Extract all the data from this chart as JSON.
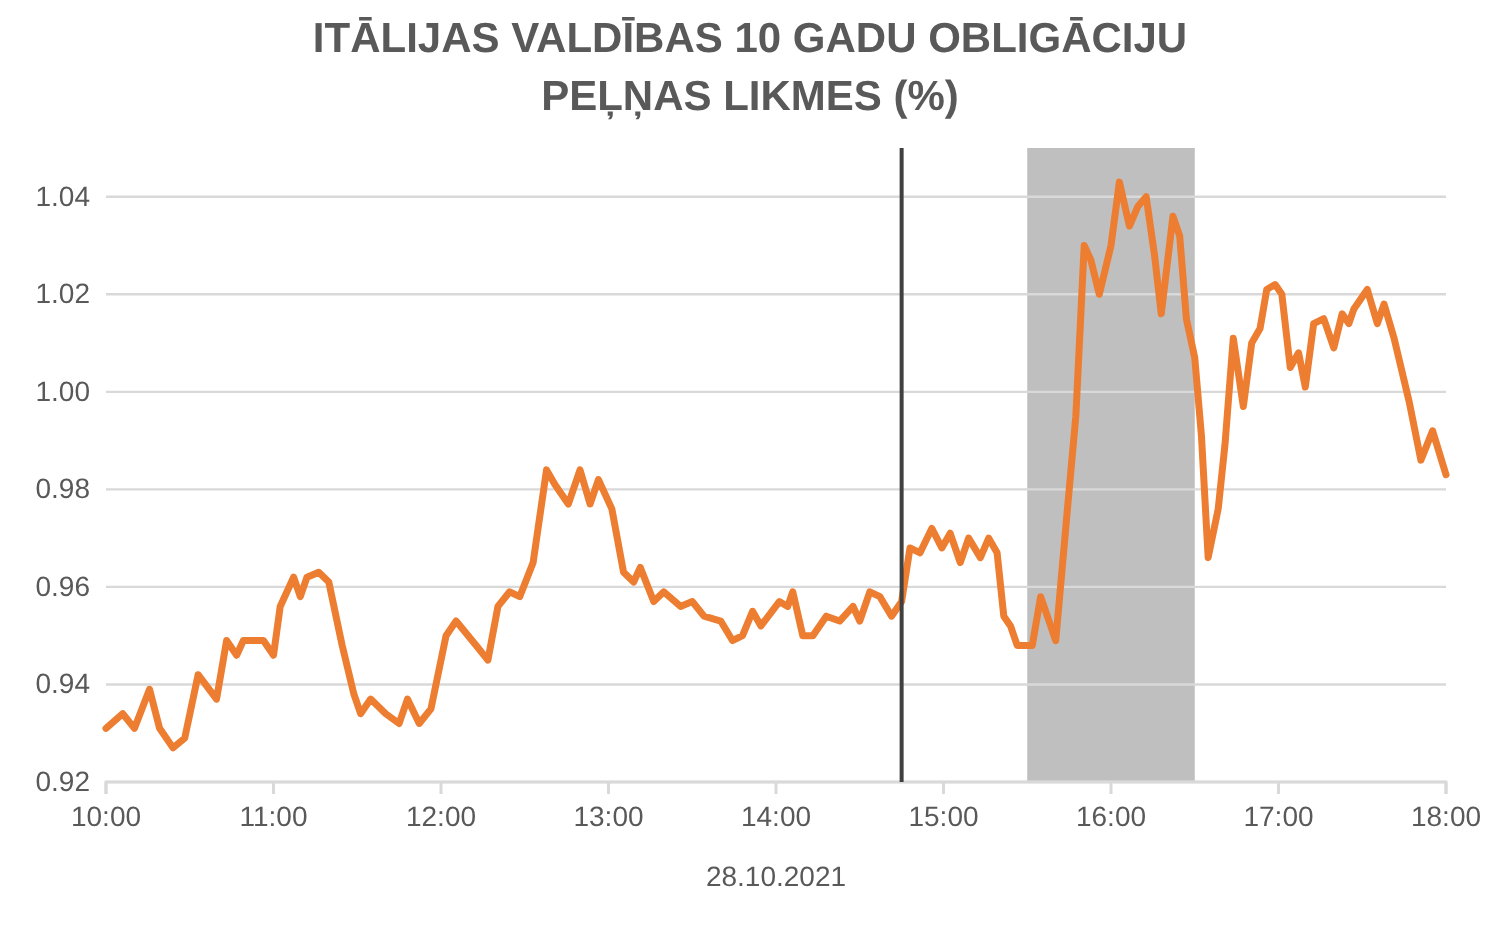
{
  "chart_data": {
    "type": "line",
    "title": "ITĀLIJAS VALDĪBAS 10 GADU OBLIGĀCIJU PEĻŅAS LIKMES (%)",
    "xlabel": "28.10.2021",
    "x": [
      10.0,
      10.1,
      10.17,
      10.26,
      10.32,
      10.4,
      10.47,
      10.55,
      10.66,
      10.72,
      10.78,
      10.82,
      10.94,
      11.0,
      11.04,
      11.12,
      11.16,
      11.2,
      11.27,
      11.33,
      11.41,
      11.48,
      11.52,
      11.58,
      11.67,
      11.75,
      11.8,
      11.87,
      11.94,
      12.03,
      12.09,
      12.21,
      12.28,
      12.34,
      12.41,
      12.47,
      12.55,
      12.63,
      12.68,
      12.76,
      12.83,
      12.89,
      12.94,
      13.02,
      13.09,
      13.15,
      13.19,
      13.27,
      13.33,
      13.43,
      13.5,
      13.57,
      13.67,
      13.74,
      13.8,
      13.86,
      13.91,
      14.02,
      14.07,
      14.1,
      14.16,
      14.22,
      14.3,
      14.38,
      14.46,
      14.5,
      14.56,
      14.62,
      14.69,
      14.75,
      14.8,
      14.86,
      14.93,
      14.99,
      15.04,
      15.1,
      15.15,
      15.22,
      15.27,
      15.32,
      15.36,
      15.4,
      15.44,
      15.53,
      15.58,
      15.67,
      15.74,
      15.79,
      15.84,
      15.88,
      15.93,
      16.0,
      16.05,
      16.11,
      16.16,
      16.21,
      16.26,
      16.3,
      16.37,
      16.41,
      16.45,
      16.5,
      16.54,
      16.58,
      16.64,
      16.68,
      16.73,
      16.79,
      16.84,
      16.89,
      16.93,
      16.98,
      17.02,
      17.07,
      17.12,
      17.16,
      17.21,
      17.27,
      17.33,
      17.38,
      17.42,
      17.45,
      17.53,
      17.59,
      17.63,
      17.69,
      17.78,
      17.85,
      17.92,
      18.0
    ],
    "series": [
      {
        "color": "#ed7d31",
        "values": [
          0.931,
          0.934,
          0.931,
          0.939,
          0.931,
          0.927,
          0.929,
          0.942,
          0.937,
          0.949,
          0.946,
          0.949,
          0.949,
          0.946,
          0.956,
          0.962,
          0.958,
          0.962,
          0.963,
          0.961,
          0.948,
          0.938,
          0.934,
          0.937,
          0.934,
          0.932,
          0.937,
          0.932,
          0.935,
          0.95,
          0.953,
          0.948,
          0.945,
          0.956,
          0.959,
          0.958,
          0.965,
          0.984,
          0.981,
          0.977,
          0.984,
          0.977,
          0.982,
          0.976,
          0.963,
          0.961,
          0.964,
          0.957,
          0.959,
          0.956,
          0.957,
          0.954,
          0.953,
          0.949,
          0.95,
          0.955,
          0.952,
          0.957,
          0.956,
          0.959,
          0.95,
          0.95,
          0.954,
          0.953,
          0.956,
          0.953,
          0.959,
          0.958,
          0.954,
          0.957,
          0.968,
          0.967,
          0.972,
          0.968,
          0.971,
          0.965,
          0.97,
          0.966,
          0.97,
          0.967,
          0.954,
          0.952,
          0.948,
          0.948,
          0.958,
          0.949,
          0.976,
          0.995,
          1.03,
          1.027,
          1.02,
          1.03,
          1.043,
          1.034,
          1.038,
          1.04,
          1.028,
          1.016,
          1.036,
          1.032,
          1.015,
          1.007,
          0.991,
          0.966,
          0.976,
          0.989,
          1.011,
          0.997,
          1.01,
          1.013,
          1.021,
          1.022,
          1.02,
          1.005,
          1.008,
          1.001,
          1.014,
          1.015,
          1.009,
          1.016,
          1.014,
          1.017,
          1.021,
          1.014,
          1.018,
          1.011,
          0.998,
          0.986,
          0.992,
          0.983
        ]
      }
    ],
    "xlim": [
      10,
      18
    ],
    "xticks": [
      {
        "value": 10,
        "label": "10:00"
      },
      {
        "value": 11,
        "label": "11:00"
      },
      {
        "value": 12,
        "label": "12:00"
      },
      {
        "value": 13,
        "label": "13:00"
      },
      {
        "value": 14,
        "label": "14:00"
      },
      {
        "value": 15,
        "label": "15:00"
      },
      {
        "value": 16,
        "label": "16:00"
      },
      {
        "value": 17,
        "label": "17:00"
      },
      {
        "value": 18,
        "label": "18:00"
      }
    ],
    "ylim": [
      0.92,
      1.05
    ],
    "yticks": [
      0.92,
      0.94,
      0.96,
      0.98,
      {
        "value": 1,
        "label": "1.00"
      },
      1.02,
      1.04
    ],
    "grid": "y",
    "ref_lines": [
      {
        "axis": "x",
        "value": 14.75,
        "color": "#404040"
      }
    ],
    "bands": [
      {
        "axis": "x",
        "from": 15.5,
        "to": 16.5,
        "color": "#bfbfbf"
      }
    ]
  }
}
